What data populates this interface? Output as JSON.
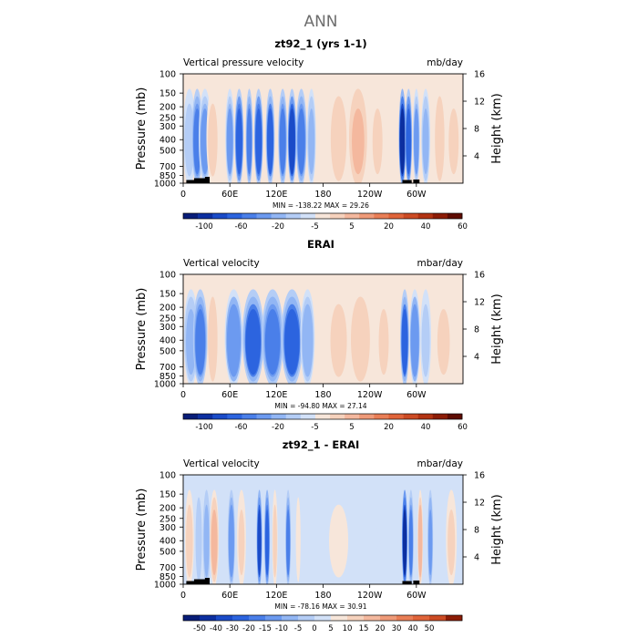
{
  "suptitle": "ANN",
  "chart_data": [
    {
      "type": "heatmap",
      "title": "zt92_1 (yrs 1-1)",
      "left_label": "Vertical pressure velocity",
      "right_label": "mb/day",
      "ylabel": "Pressure (mb)",
      "ylabel_right": "Height (km)",
      "x_ticks": [
        "0",
        "60E",
        "120E",
        "180",
        "120W",
        "60W"
      ],
      "x_tick_values": [
        0,
        60,
        120,
        180,
        240,
        300
      ],
      "xlim": [
        0,
        360
      ],
      "y_ticks": [
        "100",
        "150",
        "200",
        "250",
        "300",
        "400",
        "500",
        "700",
        "850",
        "1000"
      ],
      "y_tick_values": [
        100,
        150,
        200,
        250,
        300,
        400,
        500,
        700,
        850,
        1000
      ],
      "ylim": [
        1000,
        100
      ],
      "height_ticks": [
        "4",
        "8",
        "12",
        "16"
      ],
      "height_values": [
        4,
        8,
        12,
        16
      ],
      "stats": "MIN = -138.22   MAX =  29.26",
      "min": -138.22,
      "max": 29.26,
      "colorbar_labels": [
        "-100",
        "-60",
        "-20",
        "-5",
        "5",
        "20",
        "40",
        "60"
      ],
      "colorbar_colors": [
        "#081d78",
        "#0c2fa0",
        "#1a4bc8",
        "#2c64df",
        "#4a7fe9",
        "#6c9af0",
        "#92b6f4",
        "#b4cdf6",
        "#d2e1f8",
        "#f7e6da",
        "#f6d2bd",
        "#f4b89e",
        "#ef9a78",
        "#e97e56",
        "#e0643a",
        "#cc4b24",
        "#b23312",
        "#8c1c06",
        "#5e0c02"
      ],
      "features": [
        {
          "lon": 8,
          "width": 7,
          "value": -35
        },
        {
          "lon": 18,
          "width": 6,
          "value": -75
        },
        {
          "lon": 28,
          "width": 7,
          "value": -55
        },
        {
          "lon": 38,
          "width": 7,
          "value": 10
        },
        {
          "lon": 60,
          "width": 5,
          "value": -60
        },
        {
          "lon": 72,
          "width": 5,
          "value": -90
        },
        {
          "lon": 85,
          "width": 4,
          "value": -70
        },
        {
          "lon": 97,
          "width": 5,
          "value": -95
        },
        {
          "lon": 112,
          "width": 5,
          "value": -85
        },
        {
          "lon": 128,
          "width": 5,
          "value": -70
        },
        {
          "lon": 140,
          "width": 5,
          "value": -100
        },
        {
          "lon": 152,
          "width": 6,
          "value": -70
        },
        {
          "lon": 165,
          "width": 5,
          "value": -40
        },
        {
          "lon": 200,
          "width": 10,
          "value": 15
        },
        {
          "lon": 225,
          "width": 10,
          "value": 25
        },
        {
          "lon": 250,
          "width": 8,
          "value": 8
        },
        {
          "lon": 282,
          "width": 4,
          "value": -130
        },
        {
          "lon": 290,
          "width": 4,
          "value": -90
        },
        {
          "lon": 300,
          "width": 4,
          "value": -60
        },
        {
          "lon": 312,
          "width": 5,
          "value": -45
        },
        {
          "lon": 330,
          "width": 6,
          "value": 15
        },
        {
          "lon": 348,
          "width": 8,
          "value": 8
        }
      ],
      "topo": [
        {
          "lon": 4,
          "to": 26,
          "p": 935
        },
        {
          "lon": 14,
          "to": 34,
          "p": 900
        },
        {
          "lon": 28,
          "to": 34,
          "p": 875
        },
        {
          "lon": 282,
          "to": 294,
          "p": 935
        },
        {
          "lon": 296,
          "to": 304,
          "p": 925
        }
      ]
    },
    {
      "type": "heatmap",
      "title": "ERAI",
      "left_label": "Vertical velocity",
      "right_label": "mbar/day",
      "ylabel": "Pressure (mb)",
      "ylabel_right": "Height (km)",
      "x_ticks": [
        "0",
        "60E",
        "120E",
        "180",
        "120W",
        "60W"
      ],
      "x_tick_values": [
        0,
        60,
        120,
        180,
        240,
        300
      ],
      "xlim": [
        0,
        360
      ],
      "y_ticks": [
        "100",
        "150",
        "200",
        "250",
        "300",
        "400",
        "500",
        "700",
        "850",
        "1000"
      ],
      "y_tick_values": [
        100,
        150,
        200,
        250,
        300,
        400,
        500,
        700,
        850,
        1000
      ],
      "ylim": [
        1000,
        100
      ],
      "height_ticks": [
        "4",
        "8",
        "12",
        "16"
      ],
      "height_values": [
        4,
        8,
        12,
        16
      ],
      "stats": "MIN = -94.80   MAX =  27.14",
      "min": -94.8,
      "max": 27.14,
      "colorbar_labels": [
        "-100",
        "-60",
        "-20",
        "-5",
        "5",
        "20",
        "40",
        "60"
      ],
      "colorbar_colors": [
        "#081d78",
        "#0c2fa0",
        "#1a4bc8",
        "#2c64df",
        "#4a7fe9",
        "#6c9af0",
        "#92b6f4",
        "#b4cdf6",
        "#d2e1f8",
        "#f7e6da",
        "#f6d2bd",
        "#f4b89e",
        "#ef9a78",
        "#e97e56",
        "#e0643a",
        "#cc4b24",
        "#b23312",
        "#8c1c06",
        "#5e0c02"
      ],
      "features": [
        {
          "lon": 10,
          "width": 8,
          "value": -30
        },
        {
          "lon": 22,
          "width": 8,
          "value": -50
        },
        {
          "lon": 38,
          "width": 6,
          "value": 12
        },
        {
          "lon": 65,
          "width": 10,
          "value": -45
        },
        {
          "lon": 90,
          "width": 12,
          "value": -60
        },
        {
          "lon": 115,
          "width": 12,
          "value": -55
        },
        {
          "lon": 140,
          "width": 12,
          "value": -60
        },
        {
          "lon": 160,
          "width": 8,
          "value": -35
        },
        {
          "lon": 200,
          "width": 12,
          "value": 8
        },
        {
          "lon": 228,
          "width": 12,
          "value": 15
        },
        {
          "lon": 258,
          "width": 8,
          "value": 6
        },
        {
          "lon": 285,
          "width": 5,
          "value": -60
        },
        {
          "lon": 298,
          "width": 6,
          "value": -45
        },
        {
          "lon": 312,
          "width": 6,
          "value": -25
        },
        {
          "lon": 335,
          "width": 10,
          "value": 6
        }
      ],
      "topo": []
    },
    {
      "type": "heatmap",
      "title": "zt92_1 - ERAI",
      "left_label": "Vertical velocity",
      "right_label": "mbar/day",
      "ylabel": "Pressure (mb)",
      "ylabel_right": "Height (km)",
      "x_ticks": [
        "0",
        "60E",
        "120E",
        "180",
        "120W",
        "60W"
      ],
      "x_tick_values": [
        0,
        60,
        120,
        180,
        240,
        300
      ],
      "xlim": [
        0,
        360
      ],
      "y_ticks": [
        "100",
        "150",
        "200",
        "250",
        "300",
        "400",
        "500",
        "700",
        "850",
        "1000"
      ],
      "y_tick_values": [
        100,
        150,
        200,
        250,
        300,
        400,
        500,
        700,
        850,
        1000
      ],
      "ylim": [
        1000,
        100
      ],
      "height_ticks": [
        "4",
        "8",
        "12",
        "16"
      ],
      "height_values": [
        4,
        8,
        12,
        16
      ],
      "stats": "MIN = -78.16   MAX =  30.91",
      "min": -78.16,
      "max": 30.91,
      "colorbar_labels": [
        "-50",
        "-40",
        "-30",
        "-20",
        "-15",
        "-10",
        "-5",
        "0",
        "5",
        "10",
        "15",
        "20",
        "30",
        "40",
        "50"
      ],
      "colorbar_colors": [
        "#081d78",
        "#0c2fa0",
        "#1a4bc8",
        "#2c64df",
        "#4a7fe9",
        "#6c9af0",
        "#92b6f4",
        "#b4cdf6",
        "#d2e1f8",
        "#f7e6da",
        "#f6d2bd",
        "#f4b89e",
        "#ef9a78",
        "#e97e56",
        "#e0643a",
        "#cc4b24",
        "#8c1c06"
      ],
      "features": [
        {
          "lon": 8,
          "width": 5,
          "value": 22
        },
        {
          "lon": 20,
          "width": 4,
          "value": -12
        },
        {
          "lon": 30,
          "width": 4,
          "value": -18
        },
        {
          "lon": 40,
          "width": 5,
          "value": 25
        },
        {
          "lon": 62,
          "width": 4,
          "value": -30
        },
        {
          "lon": 75,
          "width": 5,
          "value": 15
        },
        {
          "lon": 98,
          "width": 3,
          "value": -55
        },
        {
          "lon": 108,
          "width": 3,
          "value": -45
        },
        {
          "lon": 118,
          "width": 3,
          "value": 18
        },
        {
          "lon": 135,
          "width": 3,
          "value": -35
        },
        {
          "lon": 148,
          "width": 3,
          "value": 10
        },
        {
          "lon": 200,
          "width": 14,
          "value": 6
        },
        {
          "lon": 265,
          "width": 14,
          "value": 4
        },
        {
          "lon": 285,
          "width": 3,
          "value": -70
        },
        {
          "lon": 293,
          "width": 3,
          "value": -40
        },
        {
          "lon": 305,
          "width": 3,
          "value": 32
        },
        {
          "lon": 318,
          "width": 3,
          "value": -25
        },
        {
          "lon": 345,
          "width": 6,
          "value": 15
        }
      ],
      "topo": [
        {
          "lon": 4,
          "to": 26,
          "p": 935
        },
        {
          "lon": 14,
          "to": 34,
          "p": 900
        },
        {
          "lon": 28,
          "to": 34,
          "p": 875
        },
        {
          "lon": 282,
          "to": 294,
          "p": 935
        },
        {
          "lon": 296,
          "to": 304,
          "p": 925
        }
      ]
    }
  ]
}
